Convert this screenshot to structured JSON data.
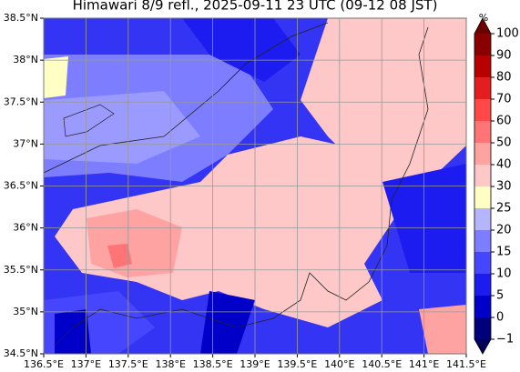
{
  "chart_data": {
    "type": "map",
    "title": "Himawari 8/9 refl., 2025-09-11 23 UTC (09-12 08 JST)",
    "xlim": [
      136.5,
      141.5
    ],
    "xticks": [
      {
        "value": 136.5,
        "label": "136.5°E"
      },
      {
        "value": 137,
        "label": "137°E"
      },
      {
        "value": 137.5,
        "label": "137.5°E"
      },
      {
        "value": 138,
        "label": "138°E"
      },
      {
        "value": 138.5,
        "label": "138.5°E"
      },
      {
        "value": 139,
        "label": "139°E"
      },
      {
        "value": 139.5,
        "label": "139.5°E"
      },
      {
        "value": 140,
        "label": "140°E"
      },
      {
        "value": 140.5,
        "label": "140.5°E"
      },
      {
        "value": 141,
        "label": "141°E"
      },
      {
        "value": 141.5,
        "label": "141.5°E"
      }
    ],
    "ylim": [
      34.5,
      38.5
    ],
    "yticks": [
      {
        "value": 34.5,
        "label": "34.5°N"
      },
      {
        "value": 35,
        "label": "35°N"
      },
      {
        "value": 35.5,
        "label": "35.5°N"
      },
      {
        "value": 36,
        "label": "36°N"
      },
      {
        "value": 36.5,
        "label": "36.5°N"
      },
      {
        "value": 37,
        "label": "37°N"
      },
      {
        "value": 37.5,
        "label": "37.5°N"
      },
      {
        "value": 38,
        "label": "38°N"
      },
      {
        "value": 38.5,
        "label": "38.5°N"
      }
    ],
    "grid": true,
    "colorbar": {
      "unit": "%",
      "ticks": [
        {
          "value": -1,
          "label": "−1"
        },
        0,
        5,
        10,
        15,
        20,
        25,
        30,
        40,
        50,
        60,
        70,
        80,
        90,
        100
      ],
      "colors": [
        "#00007a",
        "#0000c8",
        "#1c1cf0",
        "#4646ff",
        "#7d7dff",
        "#b4b4ff",
        "#ffffc4",
        "#ffc8c8",
        "#ffa2a2",
        "#ff7474",
        "#ff4848",
        "#e41e1e",
        "#b80000",
        "#8a0000"
      ],
      "under_color": "#00005a",
      "over_color": "#6e0000"
    }
  }
}
